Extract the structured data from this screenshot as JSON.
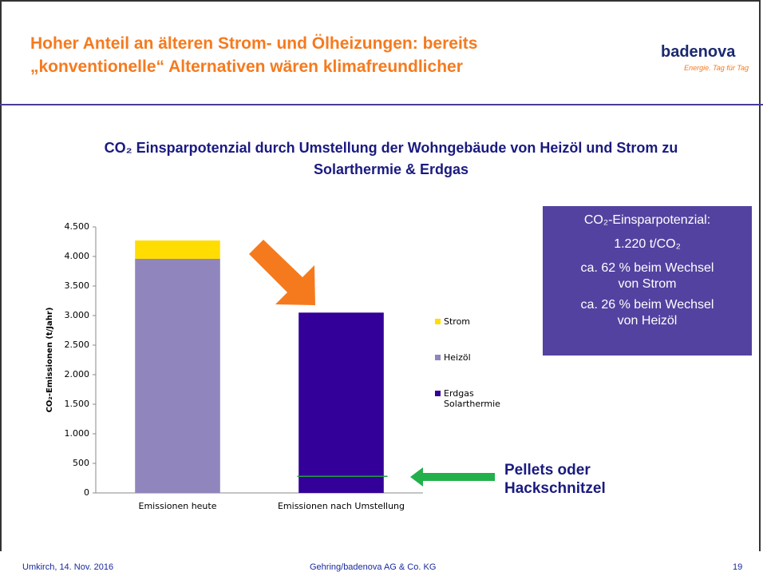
{
  "header": {
    "title": "Hoher Anteil an älteren Strom- und Ölheizungen: bereits „konventionelle“ Alternativen wären klimafreundlicher",
    "logo": "badenova",
    "slogan": "Energie. Tag für Tag"
  },
  "chart_data": {
    "type": "stacked_bar",
    "title": "CO₂ Einsparpotenzial durch Umstellung der Wohngebäude von Heizöl und Strom zu Solarthermie & Erdgas",
    "y_label": "CO₂-Emissionen (t/Jahr)",
    "categories": [
      "Emissionen heute",
      "Emissionen nach Umstellung"
    ],
    "series": [
      {
        "name": "Erdgas Solarthermie",
        "color": "#330099",
        "values": [
          0,
          3050
        ]
      },
      {
        "name": "Heizöl",
        "color": "#9085bd",
        "values": [
          3960,
          0
        ]
      },
      {
        "name": "Strom",
        "color": "#ffdd00",
        "values": [
          310,
          0
        ]
      }
    ],
    "ylim": [
      0,
      4500
    ],
    "yticks": [
      0,
      500,
      {
        "value": 1000,
        "label": "1.000"
      },
      {
        "value": 1500,
        "label": "1.500"
      },
      {
        "value": 2000,
        "label": "2.000"
      },
      {
        "value": 2500,
        "label": "2.500"
      },
      {
        "value": 3000,
        "label": "3.000"
      },
      {
        "value": 3500,
        "label": "3.500"
      },
      {
        "value": 4000,
        "label": "4.000"
      },
      {
        "value": 4500,
        "label": "4.500"
      }
    ],
    "annotation": {
      "text": "Pellets oder Hackschnitzel",
      "value": 280
    }
  },
  "info_box": [
    "CO₂-Einsparpotenzial:",
    "1.220 t/CO₂",
    "ca. 62 % beim Wechsel von Strom",
    "ca. 26 % beim Wechsel von Heizöl"
  ],
  "footer": {
    "left": "Umkirch, 14. Nov. 2016",
    "center": "Gehring/badenova AG & Co. KG",
    "page": "19"
  }
}
